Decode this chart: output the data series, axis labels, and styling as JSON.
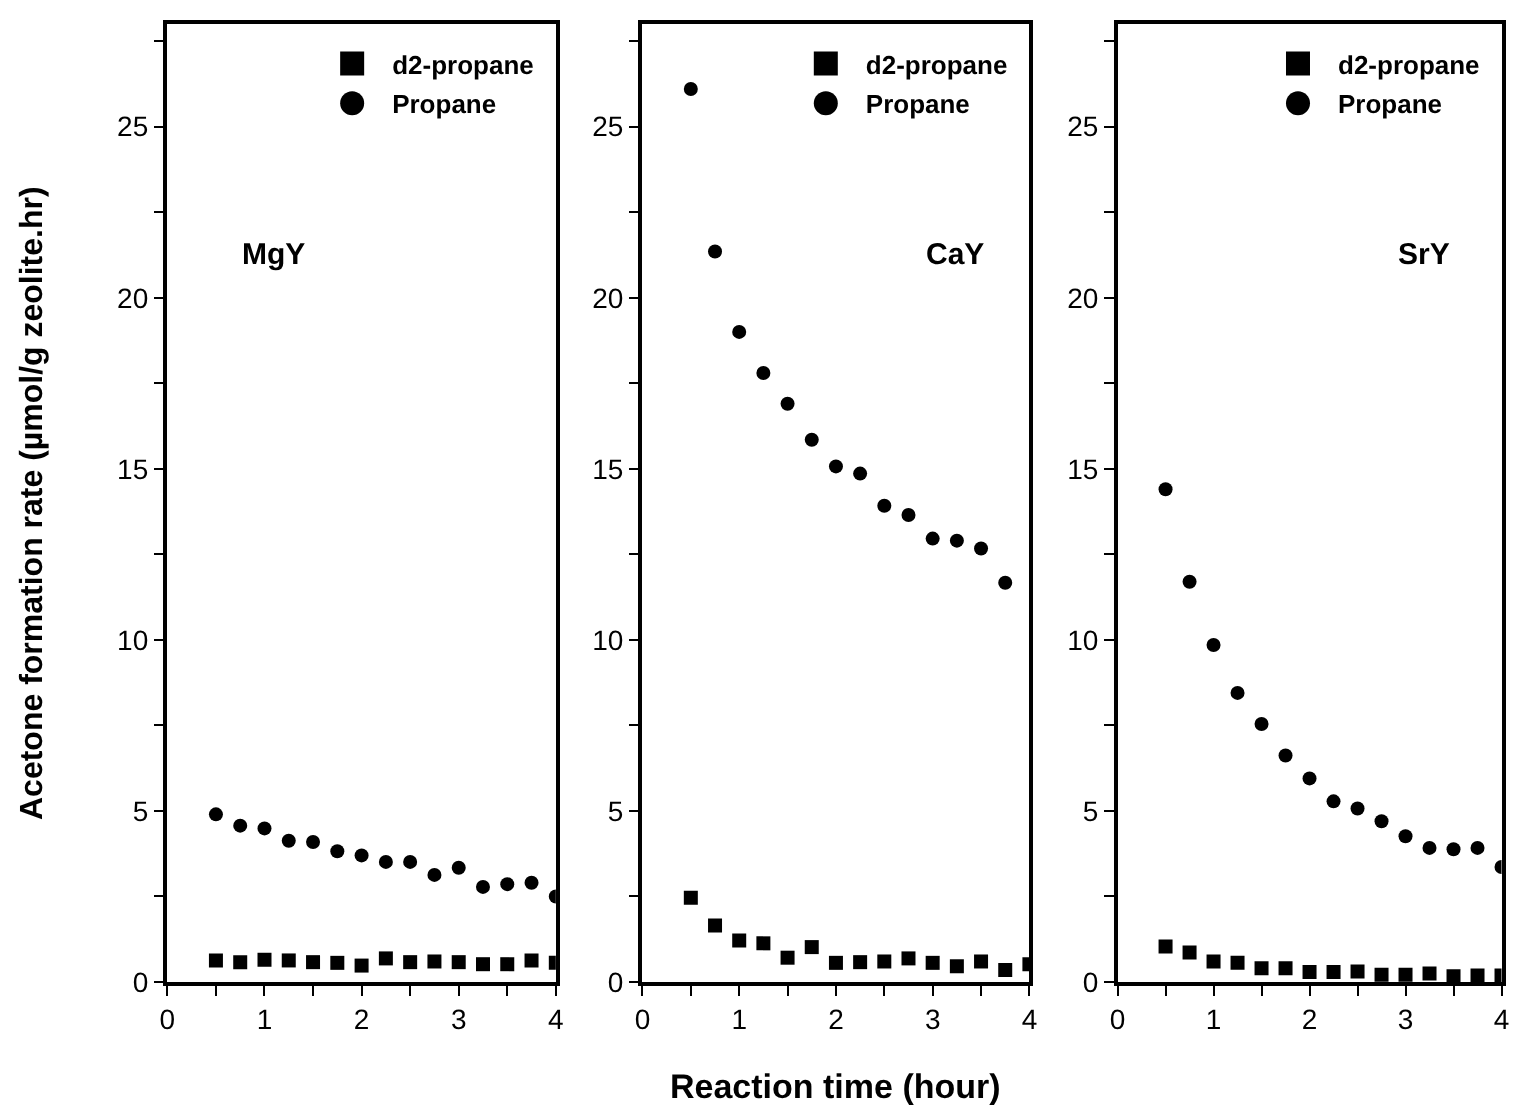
{
  "chart_data": [
    {
      "type": "scatter",
      "ylabel": "Acetone formation rate (µmol/g zeolite.hr)",
      "annotations": [
        "MgY"
      ],
      "legend": "top right",
      "x": [
        0.5,
        0.75,
        1,
        1.25,
        1.5,
        1.75,
        2,
        2.25,
        2.5,
        2.75,
        3,
        3.25,
        3.5,
        3.75,
        4
      ],
      "xlim": [
        0,
        4
      ],
      "ylim": [
        0,
        28
      ],
      "xticks": [
        0,
        {
          "value": 0.5,
          "label": null
        },
        1,
        {
          "value": 1.5,
          "label": null
        },
        2,
        {
          "value": 2.5,
          "label": null
        },
        3,
        {
          "value": 3.5,
          "label": null
        },
        4
      ],
      "yticks": [
        0,
        {
          "value": 2.5,
          "label": null
        },
        5,
        {
          "value": 7.5,
          "label": null
        },
        10,
        {
          "value": 12.5,
          "label": null
        },
        15,
        {
          "value": 17.5,
          "label": null
        },
        20,
        {
          "value": 22.5,
          "label": null
        },
        25,
        {
          "value": 27.5,
          "label": null
        }
      ],
      "series": [
        {
          "name": "d2-propane",
          "color": "#000000",
          "marker": "square",
          "values": [
            0.63,
            0.58,
            0.65,
            0.63,
            0.58,
            0.56,
            0.48,
            0.69,
            0.58,
            0.6,
            0.58,
            0.52,
            0.52,
            0.63,
            0.56
          ]
        },
        {
          "name": "Propane",
          "color": "#000000",
          "marker": "circle",
          "values": [
            4.9,
            4.57,
            4.49,
            4.13,
            4.09,
            3.82,
            3.7,
            3.51,
            3.51,
            3.13,
            3.34,
            2.78,
            2.86,
            2.9,
            2.5
          ]
        }
      ]
    },
    {
      "type": "scatter",
      "xlabel": "Reaction time (hour)",
      "annotations": [
        "CaY"
      ],
      "legend": "top right",
      "x": [
        0.5,
        0.75,
        1,
        1.25,
        1.5,
        1.75,
        2,
        2.25,
        2.5,
        2.75,
        3,
        3.25,
        3.5,
        3.75,
        4
      ],
      "xlim": [
        0,
        4
      ],
      "ylim": [
        0,
        28
      ],
      "xticks": [
        0,
        {
          "value": 0.5,
          "label": null
        },
        1,
        {
          "value": 1.5,
          "label": null
        },
        2,
        {
          "value": 2.5,
          "label": null
        },
        3,
        {
          "value": 3.5,
          "label": null
        },
        4
      ],
      "yticks": [
        0,
        {
          "value": 2.5,
          "label": null
        },
        5,
        {
          "value": 7.5,
          "label": null
        },
        10,
        {
          "value": 12.5,
          "label": null
        },
        15,
        {
          "value": 17.5,
          "label": null
        },
        20,
        {
          "value": 22.5,
          "label": null
        },
        25,
        {
          "value": 27.5,
          "label": null
        }
      ],
      "series": [
        {
          "name": "d2-propane",
          "color": "#000000",
          "marker": "square",
          "values": [
            2.46,
            1.65,
            1.21,
            1.13,
            0.71,
            1.02,
            0.56,
            0.58,
            0.6,
            0.69,
            0.56,
            0.46,
            0.6,
            0.35,
            0.52
          ]
        },
        {
          "name": "Propane",
          "color": "#000000",
          "marker": "circle",
          "values": [
            26.1,
            21.35,
            19.0,
            17.8,
            16.9,
            15.85,
            15.07,
            14.86,
            13.92,
            13.65,
            12.96,
            12.9,
            12.67,
            11.67,
            null
          ]
        }
      ]
    },
    {
      "type": "scatter",
      "annotations": [
        "SrY"
      ],
      "legend": "top right",
      "x": [
        0.5,
        0.75,
        1,
        1.25,
        1.5,
        1.75,
        2,
        2.25,
        2.5,
        2.75,
        3,
        3.25,
        3.5,
        3.75,
        4
      ],
      "xlim": [
        0,
        4
      ],
      "ylim": [
        0,
        28
      ],
      "xticks": [
        0,
        {
          "value": 0.5,
          "label": null
        },
        1,
        {
          "value": 1.5,
          "label": null
        },
        2,
        {
          "value": 2.5,
          "label": null
        },
        3,
        {
          "value": 3.5,
          "label": null
        },
        4
      ],
      "yticks": [
        0,
        {
          "value": 2.5,
          "label": null
        },
        5,
        {
          "value": 7.5,
          "label": null
        },
        10,
        {
          "value": 12.5,
          "label": null
        },
        15,
        {
          "value": 17.5,
          "label": null
        },
        20,
        {
          "value": 22.5,
          "label": null
        },
        25,
        {
          "value": 27.5,
          "label": null
        }
      ],
      "series": [
        {
          "name": "d2-propane",
          "color": "#000000",
          "marker": "square",
          "values": [
            1.04,
            0.86,
            0.6,
            0.56,
            0.4,
            0.4,
            0.29,
            0.29,
            0.31,
            0.21,
            0.21,
            0.25,
            0.17,
            0.19,
            0.19
          ]
        },
        {
          "name": "Propane",
          "color": "#000000",
          "marker": "circle",
          "values": [
            14.4,
            11.7,
            9.85,
            8.45,
            7.54,
            6.62,
            5.95,
            5.28,
            5.07,
            4.7,
            4.26,
            3.92,
            3.88,
            3.92,
            3.36
          ]
        }
      ]
    }
  ]
}
